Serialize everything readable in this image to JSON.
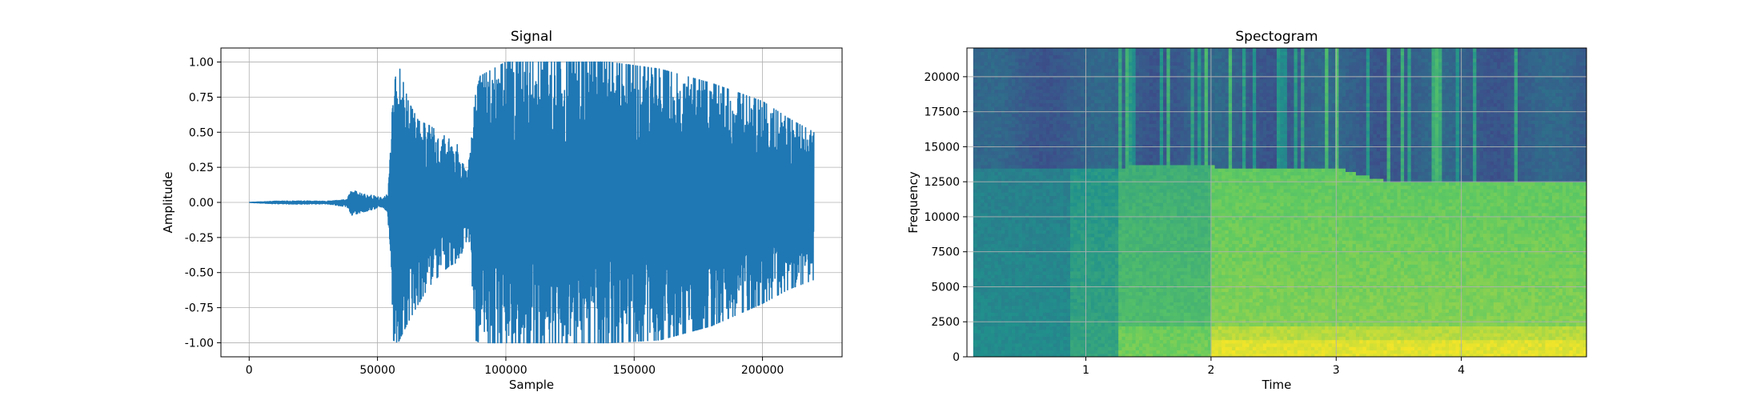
{
  "chart_data": [
    {
      "type": "line",
      "title": "Signal",
      "xlabel": "Sample",
      "ylabel": "Amplitude",
      "xlim": [
        -11000,
        231000
      ],
      "ylim": [
        -1.1,
        1.1
      ],
      "xticks": [
        0,
        50000,
        100000,
        150000,
        200000
      ],
      "yticks": [
        -1.0,
        -0.75,
        -0.5,
        -0.25,
        0.0,
        0.25,
        0.5,
        0.75,
        1.0
      ],
      "grid": true,
      "color": "#1f77b4",
      "envelope": {
        "x": [
          0,
          10000,
          20000,
          30000,
          38000,
          40000,
          44000,
          48000,
          52000,
          54000,
          55000,
          56000,
          58000,
          62000,
          66000,
          70000,
          74000,
          78000,
          82000,
          84000,
          86000,
          88000,
          90000,
          100000,
          120000,
          140000,
          160000,
          180000,
          200000,
          210000,
          220000
        ],
        "upper": [
          0.0,
          0.008,
          0.01,
          0.008,
          0.02,
          0.09,
          0.06,
          0.05,
          0.03,
          0.06,
          0.35,
          0.78,
          1.0,
          0.72,
          0.58,
          0.55,
          0.5,
          0.45,
          0.4,
          0.22,
          0.32,
          0.75,
          0.9,
          1.0,
          1.0,
          1.0,
          0.95,
          0.85,
          0.72,
          0.6,
          0.5
        ],
        "lower": [
          0.0,
          -0.01,
          -0.012,
          -0.01,
          -0.03,
          -0.09,
          -0.07,
          -0.05,
          -0.03,
          -0.08,
          -0.5,
          -0.98,
          -1.0,
          -0.85,
          -0.72,
          -0.6,
          -0.52,
          -0.45,
          -0.42,
          -0.28,
          -0.28,
          -0.98,
          -1.0,
          -1.0,
          -1.0,
          -1.0,
          -0.98,
          -0.88,
          -0.72,
          -0.62,
          -0.55
        ]
      }
    },
    {
      "type": "heatmap",
      "title": "Spectogram",
      "xlabel": "Time",
      "ylabel": "Frequency",
      "xlim": [
        0.05,
        5.0
      ],
      "ylim": [
        0,
        22050
      ],
      "xticks": [
        1,
        2,
        3,
        4
      ],
      "yticks": [
        0,
        2500,
        5000,
        7500,
        10000,
        12500,
        15000,
        17500,
        20000
      ],
      "grid": true,
      "colormap": "viridis",
      "colormap_stops": [
        "#440154",
        "#3b528b",
        "#21918c",
        "#5ec962",
        "#fde725"
      ],
      "colormap_anchors": [
        0.0,
        0.25,
        0.5,
        0.75,
        1.0
      ]
    }
  ]
}
